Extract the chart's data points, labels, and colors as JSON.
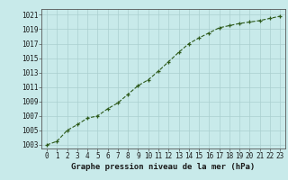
{
  "x": [
    0,
    1,
    2,
    3,
    4,
    5,
    6,
    7,
    8,
    9,
    10,
    11,
    12,
    13,
    14,
    15,
    16,
    17,
    18,
    19,
    20,
    21,
    22,
    23
  ],
  "y": [
    1003.0,
    1003.5,
    1005.0,
    1005.8,
    1006.7,
    1007.0,
    1008.0,
    1008.8,
    1010.0,
    1011.2,
    1012.0,
    1013.2,
    1014.5,
    1015.8,
    1017.0,
    1017.8,
    1018.5,
    1019.2,
    1019.5,
    1019.8,
    1020.0,
    1020.2,
    1020.5,
    1020.8
  ],
  "line_color": "#2d5a1b",
  "marker_color": "#2d5a1b",
  "bg_color": "#c8eaea",
  "grid_color": "#aacfcf",
  "title": "Graphe pression niveau de la mer (hPa)",
  "ylabel_vals": [
    1003,
    1005,
    1007,
    1009,
    1011,
    1013,
    1015,
    1017,
    1019,
    1021
  ],
  "xlabel_vals": [
    0,
    1,
    2,
    3,
    4,
    5,
    6,
    7,
    8,
    9,
    10,
    11,
    12,
    13,
    14,
    15,
    16,
    17,
    18,
    19,
    20,
    21,
    22,
    23
  ],
  "ylim": [
    1002.5,
    1021.8
  ],
  "xlim": [
    -0.5,
    23.5
  ],
  "tick_fontsize": 5.5,
  "title_fontsize": 6.5
}
